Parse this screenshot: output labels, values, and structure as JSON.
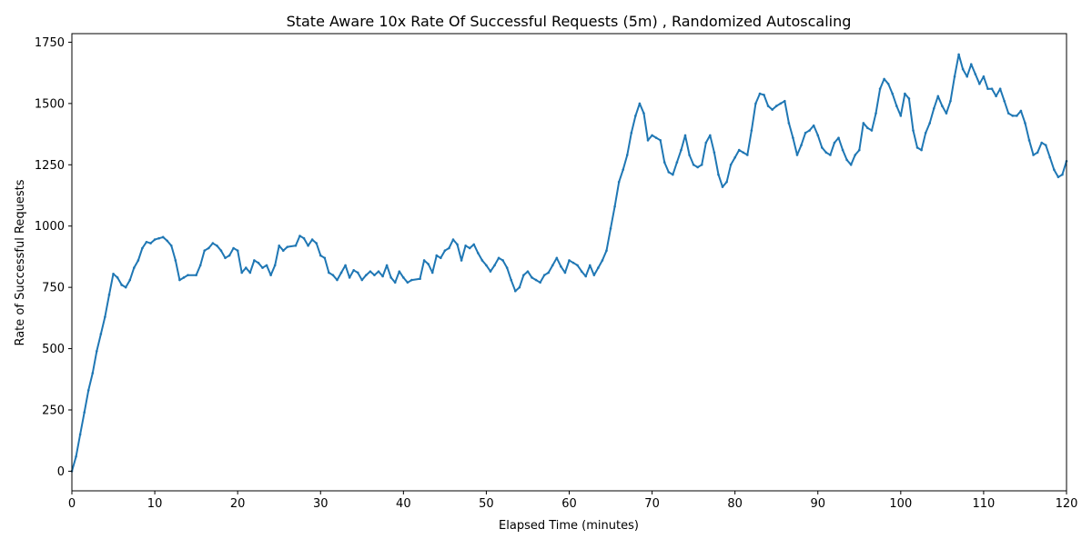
{
  "chart_data": {
    "type": "line",
    "title": "State Aware 10x Rate Of Successful Requests (5m) , Randomized Autoscaling",
    "xlabel": "Elapsed Time (minutes)",
    "ylabel": "Rate of Successful Requests",
    "xlim": [
      0,
      120
    ],
    "ylim": [
      -80,
      1785
    ],
    "xticks": [
      0,
      10,
      20,
      30,
      40,
      50,
      60,
      70,
      80,
      90,
      100,
      110,
      120
    ],
    "yticks": [
      0,
      250,
      500,
      750,
      1000,
      1250,
      1500,
      1750
    ],
    "grid": false,
    "legend": "none",
    "series": [
      {
        "color": "#1f77b4",
        "points": [
          [
            0,
            0
          ],
          [
            0.5,
            60
          ],
          [
            1,
            150
          ],
          [
            1.5,
            240
          ],
          [
            2,
            330
          ],
          [
            2.5,
            400
          ],
          [
            3,
            490
          ],
          [
            3.5,
            560
          ],
          [
            4,
            630
          ],
          [
            4.5,
            720
          ],
          [
            5,
            805
          ],
          [
            5.5,
            790
          ],
          [
            6,
            760
          ],
          [
            6.5,
            750
          ],
          [
            7,
            780
          ],
          [
            7.5,
            830
          ],
          [
            8,
            860
          ],
          [
            8.5,
            910
          ],
          [
            9,
            935
          ],
          [
            9.5,
            930
          ],
          [
            10,
            945
          ],
          [
            10.5,
            950
          ],
          [
            11,
            955
          ],
          [
            11.5,
            940
          ],
          [
            12,
            920
          ],
          [
            12.5,
            860
          ],
          [
            13,
            780
          ],
          [
            13.5,
            790
          ],
          [
            14,
            800
          ],
          [
            15,
            800
          ],
          [
            15.5,
            840
          ],
          [
            16,
            900
          ],
          [
            16.5,
            910
          ],
          [
            17,
            930
          ],
          [
            17.5,
            920
          ],
          [
            18,
            900
          ],
          [
            18.5,
            870
          ],
          [
            19,
            880
          ],
          [
            19.5,
            910
          ],
          [
            20,
            900
          ],
          [
            20.5,
            810
          ],
          [
            21,
            830
          ],
          [
            21.5,
            810
          ],
          [
            22,
            860
          ],
          [
            22.5,
            850
          ],
          [
            23,
            830
          ],
          [
            23.5,
            840
          ],
          [
            24,
            800
          ],
          [
            24.5,
            840
          ],
          [
            25,
            920
          ],
          [
            25.5,
            900
          ],
          [
            26,
            915
          ],
          [
            27,
            920
          ],
          [
            27.5,
            960
          ],
          [
            28,
            950
          ],
          [
            28.5,
            920
          ],
          [
            29,
            945
          ],
          [
            29.5,
            930
          ],
          [
            30,
            880
          ],
          [
            30.5,
            870
          ],
          [
            31,
            810
          ],
          [
            31.5,
            800
          ],
          [
            32,
            780
          ],
          [
            32.5,
            810
          ],
          [
            33,
            840
          ],
          [
            33.5,
            790
          ],
          [
            34,
            820
          ],
          [
            34.5,
            810
          ],
          [
            35,
            780
          ],
          [
            35.5,
            800
          ],
          [
            36,
            815
          ],
          [
            36.5,
            800
          ],
          [
            37,
            815
          ],
          [
            37.5,
            795
          ],
          [
            38,
            840
          ],
          [
            38.5,
            790
          ],
          [
            39,
            770
          ],
          [
            39.5,
            815
          ],
          [
            40,
            790
          ],
          [
            40.5,
            770
          ],
          [
            41,
            780
          ],
          [
            42,
            785
          ],
          [
            42.5,
            860
          ],
          [
            43,
            845
          ],
          [
            43.5,
            810
          ],
          [
            44,
            880
          ],
          [
            44.5,
            870
          ],
          [
            45,
            900
          ],
          [
            45.5,
            910
          ],
          [
            46,
            945
          ],
          [
            46.5,
            925
          ],
          [
            47,
            860
          ],
          [
            47.5,
            920
          ],
          [
            48,
            910
          ],
          [
            48.5,
            925
          ],
          [
            49,
            890
          ],
          [
            49.5,
            860
          ],
          [
            50,
            840
          ],
          [
            50.5,
            815
          ],
          [
            51,
            840
          ],
          [
            51.5,
            870
          ],
          [
            52,
            860
          ],
          [
            52.5,
            830
          ],
          [
            53,
            780
          ],
          [
            53.5,
            735
          ],
          [
            54,
            750
          ],
          [
            54.5,
            800
          ],
          [
            55,
            815
          ],
          [
            55.5,
            790
          ],
          [
            56,
            780
          ],
          [
            56.5,
            770
          ],
          [
            57,
            800
          ],
          [
            57.5,
            810
          ],
          [
            58,
            840
          ],
          [
            58.5,
            870
          ],
          [
            59,
            835
          ],
          [
            59.5,
            810
          ],
          [
            60,
            860
          ],
          [
            60.5,
            850
          ],
          [
            61,
            840
          ],
          [
            61.5,
            815
          ],
          [
            62,
            795
          ],
          [
            62.5,
            840
          ],
          [
            63,
            800
          ],
          [
            63.5,
            830
          ],
          [
            64,
            860
          ],
          [
            64.5,
            900
          ],
          [
            65,
            990
          ],
          [
            65.5,
            1080
          ],
          [
            66,
            1180
          ],
          [
            66.5,
            1230
          ],
          [
            67,
            1290
          ],
          [
            67.5,
            1380
          ],
          [
            68,
            1450
          ],
          [
            68.5,
            1500
          ],
          [
            69,
            1460
          ],
          [
            69.5,
            1350
          ],
          [
            70,
            1370
          ],
          [
            70.5,
            1360
          ],
          [
            71,
            1350
          ],
          [
            71.5,
            1260
          ],
          [
            72,
            1220
          ],
          [
            72.5,
            1210
          ],
          [
            73,
            1260
          ],
          [
            73.5,
            1310
          ],
          [
            74,
            1370
          ],
          [
            74.5,
            1290
          ],
          [
            75,
            1250
          ],
          [
            75.5,
            1240
          ],
          [
            76,
            1250
          ],
          [
            76.5,
            1340
          ],
          [
            77,
            1370
          ],
          [
            77.5,
            1300
          ],
          [
            78,
            1210
          ],
          [
            78.5,
            1160
          ],
          [
            79,
            1180
          ],
          [
            79.5,
            1250
          ],
          [
            80,
            1280
          ],
          [
            80.5,
            1310
          ],
          [
            81,
            1300
          ],
          [
            81.5,
            1290
          ],
          [
            82,
            1390
          ],
          [
            82.5,
            1500
          ],
          [
            83,
            1540
          ],
          [
            83.5,
            1535
          ],
          [
            84,
            1490
          ],
          [
            84.5,
            1475
          ],
          [
            85,
            1490
          ],
          [
            85.5,
            1500
          ],
          [
            86,
            1510
          ],
          [
            86.5,
            1420
          ],
          [
            87,
            1360
          ],
          [
            87.5,
            1290
          ],
          [
            88,
            1330
          ],
          [
            88.5,
            1380
          ],
          [
            89,
            1390
          ],
          [
            89.5,
            1410
          ],
          [
            90,
            1370
          ],
          [
            90.5,
            1320
          ],
          [
            91,
            1300
          ],
          [
            91.5,
            1290
          ],
          [
            92,
            1340
          ],
          [
            92.5,
            1360
          ],
          [
            93,
            1310
          ],
          [
            93.5,
            1270
          ],
          [
            94,
            1250
          ],
          [
            94.5,
            1290
          ],
          [
            95,
            1310
          ],
          [
            95.5,
            1420
          ],
          [
            96,
            1400
          ],
          [
            96.5,
            1390
          ],
          [
            97,
            1460
          ],
          [
            97.5,
            1560
          ],
          [
            98,
            1600
          ],
          [
            98.5,
            1580
          ],
          [
            99,
            1540
          ],
          [
            99.5,
            1490
          ],
          [
            100,
            1450
          ],
          [
            100.5,
            1540
          ],
          [
            101,
            1520
          ],
          [
            101.5,
            1390
          ],
          [
            102,
            1320
          ],
          [
            102.5,
            1310
          ],
          [
            103,
            1380
          ],
          [
            103.5,
            1420
          ],
          [
            104,
            1480
          ],
          [
            104.5,
            1530
          ],
          [
            105,
            1490
          ],
          [
            105.5,
            1460
          ],
          [
            106,
            1510
          ],
          [
            106.5,
            1610
          ],
          [
            107,
            1700
          ],
          [
            107.5,
            1640
          ],
          [
            108,
            1610
          ],
          [
            108.5,
            1660
          ],
          [
            109,
            1620
          ],
          [
            109.5,
            1580
          ],
          [
            110,
            1610
          ],
          [
            110.5,
            1560
          ],
          [
            111,
            1560
          ],
          [
            111.5,
            1530
          ],
          [
            112,
            1560
          ],
          [
            112.5,
            1510
          ],
          [
            113,
            1460
          ],
          [
            113.5,
            1450
          ],
          [
            114,
            1450
          ],
          [
            114.5,
            1470
          ],
          [
            115,
            1420
          ],
          [
            115.5,
            1350
          ],
          [
            116,
            1290
          ],
          [
            116.5,
            1300
          ],
          [
            117,
            1340
          ],
          [
            117.5,
            1330
          ],
          [
            118,
            1280
          ],
          [
            118.5,
            1230
          ],
          [
            119,
            1200
          ],
          [
            119.5,
            1210
          ],
          [
            120,
            1265
          ]
        ]
      }
    ]
  }
}
